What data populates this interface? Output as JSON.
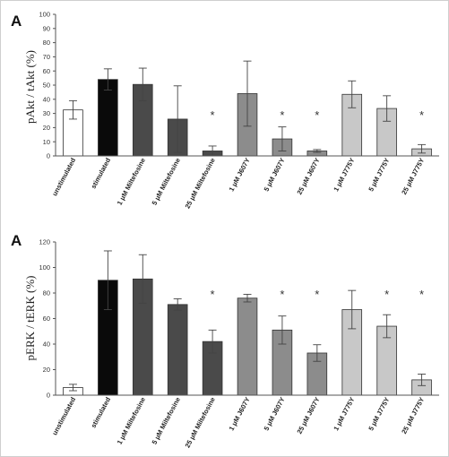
{
  "chart_data": [
    {
      "type": "bar",
      "panel_label": "A",
      "ylabel": "pAkt / tAkt  (%)",
      "ylim": [
        0,
        100
      ],
      "yticks": [
        "0",
        "10",
        "20",
        "30",
        "40",
        "50",
        "60",
        "70",
        "80",
        "90",
        "100"
      ],
      "categories": [
        "unstimulated",
        "stimulated",
        "1 μM Miltefosine",
        "5 μM Miltefosine",
        "25 μM Miltefosine",
        "1 μM J607Y",
        "5 μM J607Y",
        "25 μM J607Y",
        "1 μM J775Y",
        "5 μM J775Y",
        "25 μM J775Y"
      ],
      "values": [
        32.5,
        54,
        50.5,
        26,
        3.5,
        44,
        12,
        3.5,
        43.5,
        33.5,
        5
      ],
      "errors": [
        6.5,
        7.5,
        11.5,
        23.5,
        3.5,
        23,
        8.5,
        1,
        9.5,
        9,
        3
      ],
      "significant": [
        false,
        false,
        false,
        false,
        true,
        false,
        true,
        true,
        false,
        false,
        true
      ],
      "marker": "*",
      "colors": [
        "#ffffff",
        "#0a0a0a",
        "#4a4a4a",
        "#4a4a4a",
        "#4a4a4a",
        "#8c8c8c",
        "#8c8c8c",
        "#8c8c8c",
        "#c8c8c8",
        "#c8c8c8",
        "#c8c8c8"
      ]
    },
    {
      "type": "bar",
      "panel_label": "A",
      "ylabel": "pERK / tERK  (%)",
      "ylim": [
        0,
        120
      ],
      "yticks": [
        "0",
        "20",
        "40",
        "60",
        "80",
        "100",
        "120"
      ],
      "categories": [
        "unstimulated",
        "stimulated",
        "1 μM Miltefosine",
        "5 μM Miltefosine",
        "25 μM Miltefosine",
        "1 μM J607Y",
        "5 μM J607Y",
        "25 μM J607Y",
        "1 μM J775Y",
        "5 μM J775Y",
        "25 μM J775Y"
      ],
      "values": [
        6,
        90,
        91,
        71,
        42,
        76,
        51,
        33,
        67,
        54,
        12
      ],
      "errors": [
        2.5,
        23,
        19,
        4.5,
        9,
        3,
        11,
        6.5,
        15,
        9,
        4.5
      ],
      "significant": [
        false,
        false,
        false,
        false,
        true,
        false,
        true,
        true,
        false,
        true,
        true
      ],
      "marker": "*",
      "colors": [
        "#ffffff",
        "#0a0a0a",
        "#4a4a4a",
        "#4a4a4a",
        "#4a4a4a",
        "#8c8c8c",
        "#8c8c8c",
        "#8c8c8c",
        "#c8c8c8",
        "#c8c8c8",
        "#c8c8c8"
      ]
    }
  ]
}
